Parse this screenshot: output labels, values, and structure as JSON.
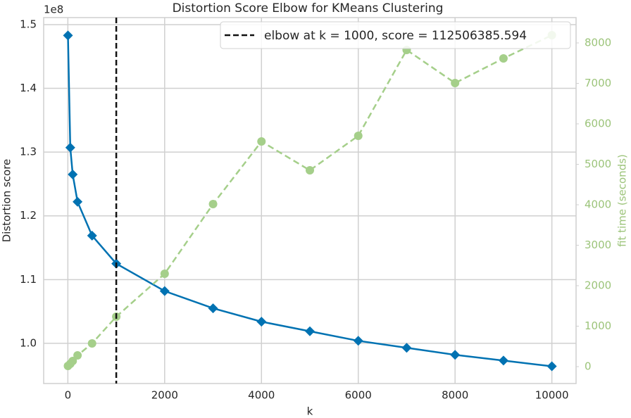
{
  "chart_data": {
    "type": "line",
    "title": "Distortion Score Elbow for KMeans Clustering",
    "x_label": "k",
    "y_label": "Distortion score",
    "y2_label": "fit time (seconds)",
    "y_offset_label": "1e8",
    "x": [
      2,
      50,
      100,
      200,
      500,
      1000,
      2000,
      3000,
      4000,
      5000,
      6000,
      7000,
      8000,
      9000,
      10000
    ],
    "series": [
      {
        "color": "#0072B2",
        "marker": "diamond",
        "values": [
          148300000,
          130700000,
          126500000,
          122200000,
          116900000,
          112506385.594,
          108200000,
          105500000,
          103400000,
          101900000,
          100400000,
          99300000,
          98200000,
          97300000,
          96400000
        ]
      },
      {
        "color": "#a5cf8a",
        "marker": "circle",
        "axis": "y2",
        "dashed": true,
        "values": [
          17,
          70,
          139,
          278,
          574,
          1235,
          2296,
          4017,
          5565,
          4852,
          5704,
          7826,
          7009,
          7617,
          8191
        ]
      }
    ],
    "elbow": {
      "x": 1000,
      "color": "#111111",
      "label": "elbow at k = 1000, score = 112506385.594"
    },
    "xlim": [
      -500,
      10500
    ],
    "xticks": [
      0,
      2000,
      4000,
      6000,
      8000,
      10000
    ],
    "ylim": [
      93700000,
      151100000
    ],
    "yticks": [
      {
        "value": 100000000,
        "label": "1.0"
      },
      {
        "value": 110000000,
        "label": "1.1"
      },
      {
        "value": 120000000,
        "label": "1.2"
      },
      {
        "value": 130000000,
        "label": "1.3"
      },
      {
        "value": 140000000,
        "label": "1.4"
      },
      {
        "value": 150000000,
        "label": "1.5"
      }
    ],
    "y2lim": [
      -417,
      8626
    ],
    "y2ticks": [
      0,
      1000,
      2000,
      3000,
      4000,
      5000,
      6000,
      7000,
      8000
    ],
    "y2_color": "#9cc47a",
    "grid": true,
    "legend": "upper right"
  }
}
